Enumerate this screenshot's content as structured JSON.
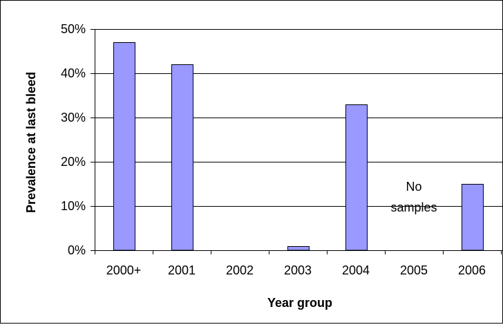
{
  "chart_data": {
    "type": "bar",
    "categories": [
      "2000+",
      "2001",
      "2002",
      "2003",
      "2004",
      "2005",
      "2006"
    ],
    "values": [
      47,
      42,
      0,
      1,
      33,
      0,
      15
    ],
    "xlabel": "Year group",
    "ylabel": "Prevalence at last bleed",
    "ylim": [
      0,
      50
    ],
    "yticks": [
      0,
      10,
      20,
      30,
      40,
      50
    ],
    "ytick_labels": [
      "0%",
      "10%",
      "20%",
      "30%",
      "40%",
      "50%"
    ],
    "grid": true,
    "legend": "none",
    "annotations": [
      {
        "category": "2005",
        "lines": [
          "No",
          "samples"
        ]
      }
    ],
    "colors": {
      "bar_fill": "#9999ff",
      "bar_stroke": "#000000",
      "grid": "#000000",
      "frame": "#000000"
    }
  }
}
